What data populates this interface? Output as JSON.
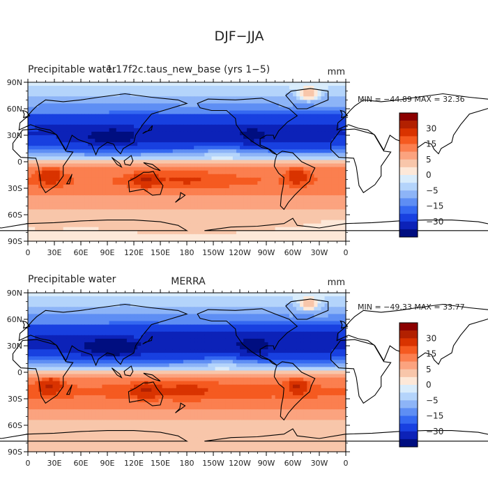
{
  "figure": {
    "title": "DJF−JJA"
  },
  "chart_data": [
    {
      "type": "heatmap",
      "variable": "Precipitable water",
      "case": "1.17f2c.taus_new_base (yrs 1−5)",
      "units": "mm",
      "stats": {
        "min": -44.89,
        "max": 32.36,
        "text": "MIN = −44.89  MAX =   32.36"
      },
      "xticks": [
        "0",
        "30E",
        "60E",
        "90E",
        "120E",
        "150E",
        "180",
        "150W",
        "120W",
        "90W",
        "60W",
        "30W",
        "0"
      ],
      "yticks": [
        "90N",
        "60N",
        "30N",
        "0",
        "30S",
        "60S",
        "90S"
      ],
      "xlim": [
        0,
        360
      ],
      "ylim": [
        -90,
        90
      ],
      "colorbar_labels": [
        "30",
        "15",
        "5",
        "0",
        "−5",
        "−15",
        "−30"
      ],
      "levels": [
        -40,
        -30,
        -20,
        -15,
        -10,
        -5,
        -2,
        0,
        2,
        5,
        10,
        15,
        20,
        30,
        40
      ]
    },
    {
      "type": "heatmap",
      "variable": "Precipitable water",
      "case": "MERRA",
      "units": "mm",
      "stats": {
        "min": -49.33,
        "max": 33.77,
        "text": "MIN = −49.33  MAX =   33.77"
      },
      "xticks": [
        "0",
        "30E",
        "60E",
        "90E",
        "120E",
        "150E",
        "180",
        "150W",
        "120W",
        "90W",
        "60W",
        "30W",
        "0"
      ],
      "yticks": [
        "90N",
        "60N",
        "30N",
        "0",
        "30S",
        "60S",
        "90S"
      ],
      "xlim": [
        0,
        360
      ],
      "ylim": [
        -90,
        90
      ],
      "colorbar_labels": [
        "30",
        "15",
        "5",
        "0",
        "−5",
        "−15",
        "−30"
      ],
      "levels": [
        -40,
        -30,
        -20,
        -15,
        -10,
        -5,
        -2,
        0,
        2,
        5,
        10,
        15,
        20,
        30,
        40
      ]
    }
  ],
  "colors": {
    "colorbar": [
      "#8b0000",
      "#b22000",
      "#d93300",
      "#f55a20",
      "#fb7f4f",
      "#fba37f",
      "#f8c6aa",
      "#fde8d8",
      "#d9ecfb",
      "#b4d4fb",
      "#8db4f7",
      "#5e8ef4",
      "#3468f1",
      "#1840e0",
      "#0c22b8",
      "#000e80"
    ],
    "coast": "#000000"
  }
}
